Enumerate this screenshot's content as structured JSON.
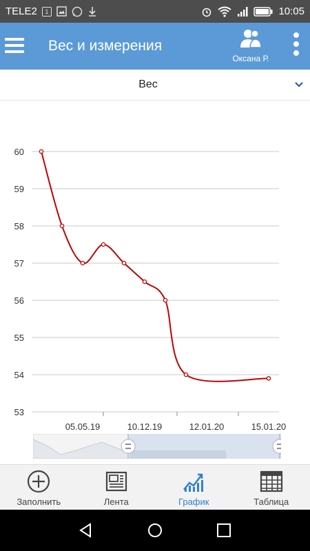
{
  "statusbar": {
    "carrier": "TELE2",
    "sim_badge": "1",
    "time": "10:05"
  },
  "appbar": {
    "title": "Вес и измерения",
    "profile_name": "Оксана Р."
  },
  "selector": {
    "value": "Вес"
  },
  "chart_data": {
    "type": "line",
    "title": "",
    "xlabel": "",
    "ylabel": "",
    "ylim": [
      53,
      60
    ],
    "yticks": [
      53,
      54,
      55,
      56,
      57,
      58,
      59,
      60
    ],
    "x_tick_labels": [
      "05.05.19",
      "10.12.19",
      "12.01.20",
      "15.01.20"
    ],
    "grid": true,
    "series": [
      {
        "color": "#c00000",
        "values": [
          60,
          58,
          57,
          57.5,
          57,
          56.5,
          56,
          54,
          53.9
        ]
      }
    ]
  },
  "bottom_nav": {
    "items": [
      {
        "label": "Заполнить",
        "icon": "plus-circle-icon"
      },
      {
        "label": "Лента",
        "icon": "newspaper-icon"
      },
      {
        "label": "График",
        "icon": "chart-icon"
      },
      {
        "label": "Таблица",
        "icon": "table-icon"
      }
    ],
    "active_color": "#2f7fd0"
  },
  "colors": {
    "appbar": "#5b9ad6",
    "line": "#c00000"
  }
}
